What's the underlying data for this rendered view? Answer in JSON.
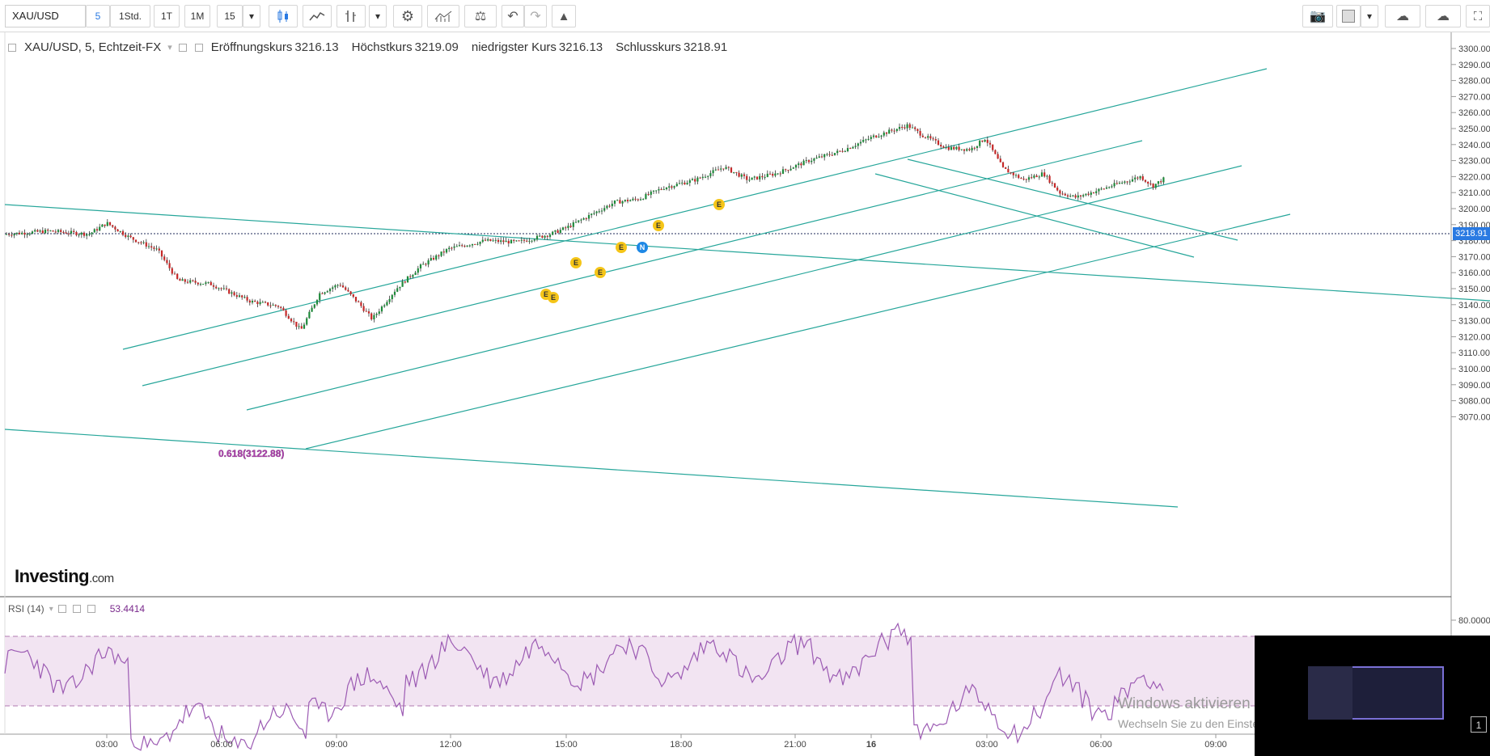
{
  "toolbar": {
    "symbol": "XAU/USD",
    "intervals": [
      "5",
      "1Std.",
      "1T",
      "1M",
      "15"
    ],
    "active_interval": "5",
    "icons": [
      "chevron-down-icon",
      "candles-icon",
      "line-chart-icon",
      "bar-type-icon",
      "chevron-down-icon",
      "gear-icon",
      "indicators-icon",
      "compare-icon",
      "undo-icon",
      "redo-icon",
      "alert-icon"
    ],
    "right_icons": [
      "camera-icon",
      "color-square-icon",
      "chevron-down-icon",
      "cloud-download-icon",
      "cloud-upload-icon",
      "fullscreen-icon"
    ]
  },
  "legend": {
    "title": "XAU/USD, 5, Echtzeit-FX",
    "open_label": "Eröffnungskurs",
    "open": "3216.13",
    "high_label": "Höchstkurs",
    "high": "3219.09",
    "low_label": "niedrigster Kurs",
    "low": "3216.13",
    "close_label": "Schlusskurs",
    "close": "3218.91"
  },
  "price_axis": {
    "labels": [
      "3300.00",
      "3290.00",
      "3280.00",
      "3270.00",
      "3260.00",
      "3250.00",
      "3240.00",
      "3230.00",
      "3220.00",
      "3210.00",
      "3200.00",
      "3190.00",
      "3180.00",
      "3170.00",
      "3160.00",
      "3150.00",
      "3140.00",
      "3130.00",
      "3120.00",
      "3110.00",
      "3100.00",
      "3090.00",
      "3080.00",
      "3070.00"
    ],
    "current_price": "3218.91"
  },
  "time_axis": {
    "labels": [
      "03:00",
      "06:00",
      "09:00",
      "12:00",
      "15:00",
      "18:00",
      "21:00",
      "16",
      "03:00",
      "06:00",
      "09:00"
    ]
  },
  "annotation": {
    "fib_label": "0.618(3122.88)"
  },
  "event_markers": [
    "E",
    "E",
    "E",
    "E",
    "E",
    "N",
    "E",
    "E"
  ],
  "logo": {
    "brand": "Investing",
    "suffix": ".com"
  },
  "rsi": {
    "label": "RSI (14)",
    "value": "53.4414",
    "axis_label": "80.0000"
  },
  "windows": {
    "line1": "Windows aktivieren",
    "line2": "Wechseln Sie zu den Einstellungen, um Windows zu aktivieren."
  },
  "thumbnail": {
    "badge": "1"
  },
  "colors": {
    "trend_line": "#26a69a",
    "up_candle": "#1e8a3a",
    "down_candle": "#c62828",
    "rsi_line": "#9c5bb3",
    "rsi_band": "#f2e4f2",
    "price_tag": "#2a7ae2",
    "event_marker": "#f5c518",
    "news_marker": "#1e88e5"
  }
}
